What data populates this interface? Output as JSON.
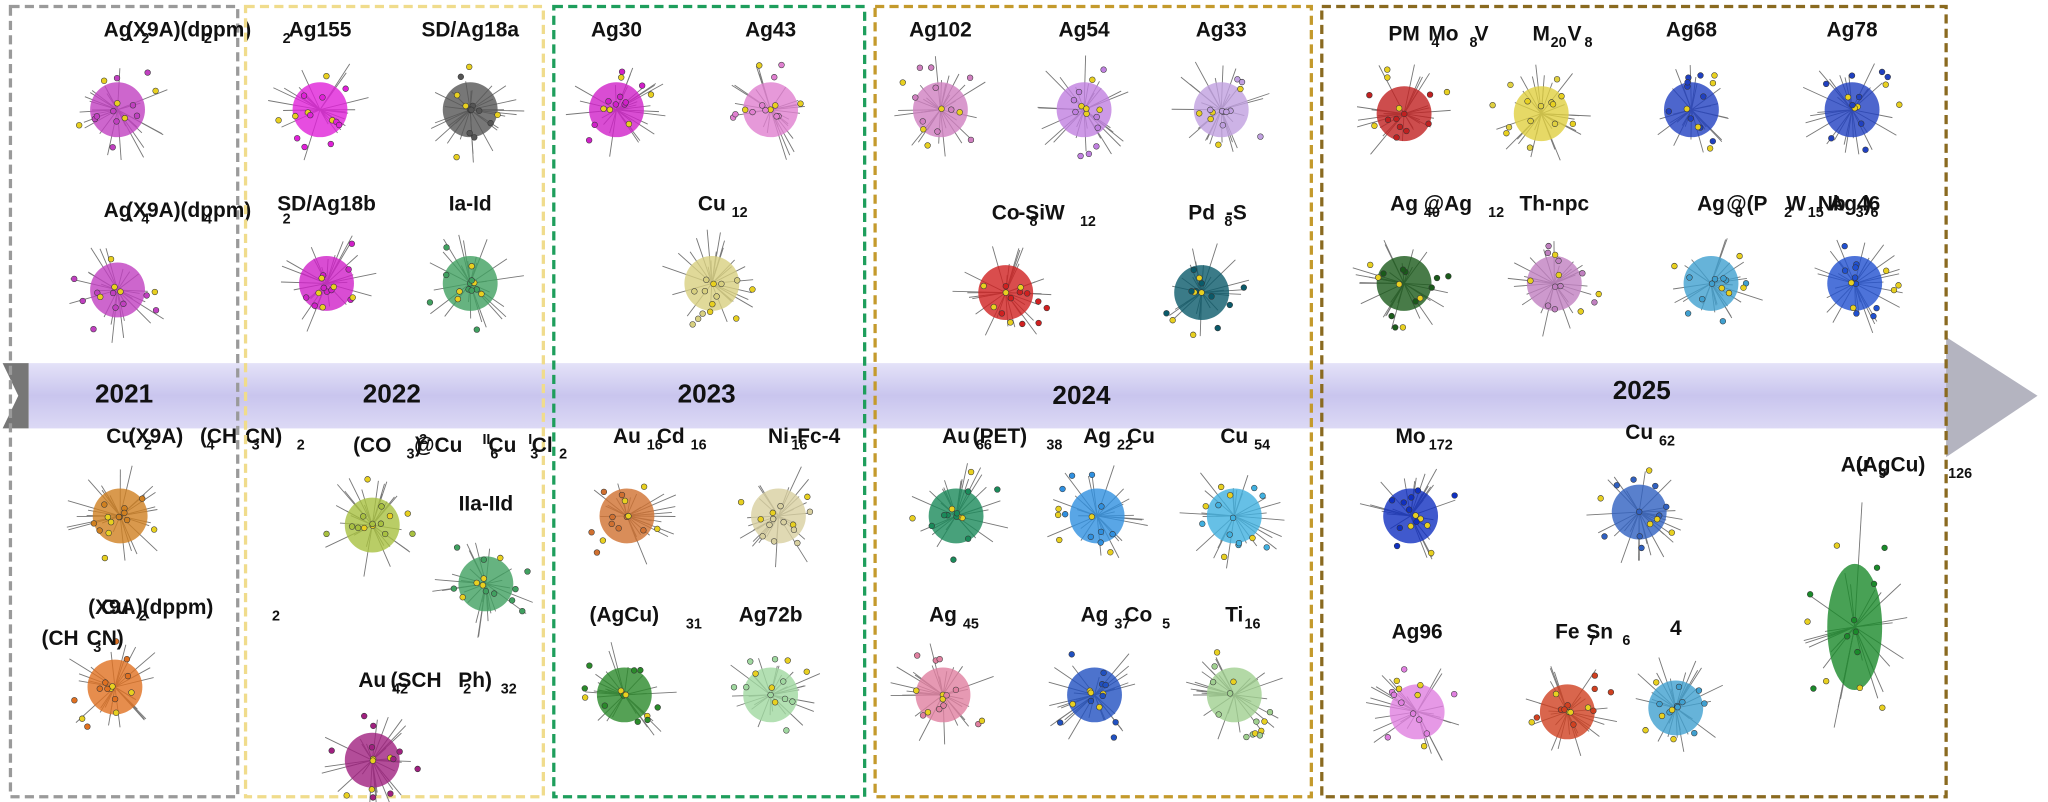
{
  "panels": [
    {
      "year": "2021",
      "items": [
        {
          "label": [
            {
              "text": "Ag"
            },
            {
              "text": "2",
              "sub": true
            },
            {
              "text": "(X9A)"
            },
            {
              "text": "2",
              "sub": true
            },
            {
              "text": "(dppm)"
            },
            {
              "text": "2",
              "sub": true
            }
          ]
        },
        {
          "label": [
            {
              "text": "Ag"
            },
            {
              "text": "4",
              "sub": true
            },
            {
              "text": "(X9A)"
            },
            {
              "text": "4",
              "sub": true
            },
            {
              "text": "(dppm)"
            },
            {
              "text": "2",
              "sub": true
            }
          ]
        },
        {
          "label": [
            {
              "text": "Cu"
            },
            {
              "text": "2",
              "sub": true
            },
            {
              "text": "(X9A)"
            },
            {
              "text": "4",
              "sub": true
            },
            {
              "text": "(CH"
            },
            {
              "text": "3",
              "sub": true
            },
            {
              "text": "CN)"
            },
            {
              "text": "2",
              "sub": true
            }
          ]
        },
        {
          "label": [
            {
              "text": "Cu"
            },
            {
              "text": "2",
              "sub": true
            },
            {
              "text": "(X9A)(dppm)"
            },
            {
              "text": "2",
              "sub": true
            }
          ]
        },
        {
          "label": [
            {
              "text": "(CH"
            },
            {
              "text": "3",
              "sub": true
            },
            {
              "text": "CN)"
            }
          ]
        }
      ]
    },
    {
      "year": "2022",
      "items": [
        {
          "label": [
            {
              "text": "Ag155"
            }
          ]
        },
        {
          "label": [
            {
              "text": "SD/Ag18a"
            }
          ]
        },
        {
          "label": [
            {
              "text": "SD/Ag18b"
            }
          ]
        },
        {
          "label": [
            {
              "text": "Ia-Id"
            }
          ]
        },
        {
          "label": [
            {
              "text": "(CO"
            },
            {
              "text": "3",
              "sub": true
            },
            {
              "text": ")"
            },
            {
              "text": "2-",
              "sup": true
            },
            {
              "text": "@Cu"
            },
            {
              "text": "II",
              "sup": true
            },
            {
              "text": "6",
              "sub": true
            },
            {
              "text": "Cu"
            },
            {
              "text": "I",
              "sup": true
            },
            {
              "text": "3",
              "sub": true
            },
            {
              "text": "Cl"
            },
            {
              "text": "2",
              "sub": true
            }
          ]
        },
        {
          "label": [
            {
              "text": "IIa-IId"
            }
          ]
        },
        {
          "label": [
            {
              "text": "Au"
            },
            {
              "text": "42",
              "sub": true
            },
            {
              "text": "(SCH"
            },
            {
              "text": "2",
              "sub": true
            },
            {
              "text": "Ph)"
            },
            {
              "text": "32",
              "sub": true
            }
          ]
        }
      ]
    },
    {
      "year": "2023",
      "items": [
        {
          "label": [
            {
              "text": "Ag30"
            }
          ]
        },
        {
          "label": [
            {
              "text": "Ag43"
            }
          ]
        },
        {
          "label": [
            {
              "text": "Cu"
            },
            {
              "text": "12",
              "sub": true
            }
          ]
        },
        {
          "label": [
            {
              "text": "Au"
            },
            {
              "text": "16",
              "sub": true
            },
            {
              "text": "Cd"
            },
            {
              "text": "16",
              "sub": true
            }
          ]
        },
        {
          "label": [
            {
              "text": "Ni"
            },
            {
              "text": "16",
              "sub": true
            },
            {
              "text": "-Fc-4"
            }
          ]
        },
        {
          "label": [
            {
              "text": "(AgCu)"
            },
            {
              "text": "31",
              "sub": true
            }
          ]
        },
        {
          "label": [
            {
              "text": "Ag72b"
            }
          ]
        }
      ]
    },
    {
      "year": "2024",
      "items": [
        {
          "label": [
            {
              "text": "Ag102"
            }
          ]
        },
        {
          "label": [
            {
              "text": "Ag54"
            }
          ]
        },
        {
          "label": [
            {
              "text": "Ag33"
            }
          ]
        },
        {
          "label": [
            {
              "text": "Co"
            },
            {
              "text": "8",
              "sub": true
            },
            {
              "text": "-SiW"
            },
            {
              "text": "12",
              "sub": true
            }
          ]
        },
        {
          "label": [
            {
              "text": "Pd"
            },
            {
              "text": "8",
              "sub": true
            },
            {
              "text": "-S"
            }
          ]
        },
        {
          "label": [
            {
              "text": "Au"
            },
            {
              "text": "66",
              "sub": true
            },
            {
              "text": "(PET)"
            },
            {
              "text": "38",
              "sub": true
            }
          ]
        },
        {
          "label": [
            {
              "text": "Ag"
            },
            {
              "text": "22",
              "sub": true
            },
            {
              "text": "Cu"
            }
          ]
        },
        {
          "label": [
            {
              "text": "Cu"
            },
            {
              "text": "54",
              "sub": true
            }
          ]
        },
        {
          "label": [
            {
              "text": "Ag"
            },
            {
              "text": "45",
              "sub": true
            }
          ]
        },
        {
          "label": [
            {
              "text": "Ag"
            },
            {
              "text": "37",
              "sub": true
            },
            {
              "text": "Co"
            },
            {
              "text": "5",
              "sub": true
            }
          ]
        },
        {
          "label": [
            {
              "text": "Ti"
            },
            {
              "text": "16",
              "sub": true
            }
          ]
        }
      ]
    },
    {
      "year": "2025",
      "items": [
        {
          "label": [
            {
              "text": "PM"
            },
            {
              "text": "4",
              "sub": true
            },
            {
              "text": "Mo"
            },
            {
              "text": "8",
              "sub": true
            },
            {
              "text": "V"
            }
          ]
        },
        {
          "label": [
            {
              "text": "M"
            },
            {
              "text": "20",
              "sub": true
            },
            {
              "text": "V"
            },
            {
              "text": "8",
              "sub": true
            }
          ]
        },
        {
          "label": [
            {
              "text": "Ag68"
            }
          ]
        },
        {
          "label": [
            {
              "text": "Ag78"
            }
          ]
        },
        {
          "label": [
            {
              "text": "Ag"
            },
            {
              "text": "40",
              "sub": true
            },
            {
              "text": "@Ag"
            },
            {
              "text": "12",
              "sub": true
            }
          ]
        },
        {
          "label": [
            {
              "text": "Th-npc"
            }
          ]
        },
        {
          "label": [
            {
              "text": "Ag"
            },
            {
              "text": "8",
              "sub": true
            },
            {
              "text": "@(P"
            },
            {
              "text": "2",
              "sub": true
            },
            {
              "text": "W"
            },
            {
              "text": "15",
              "sub": true
            },
            {
              "text": "Nb"
            },
            {
              "text": "3",
              "sub": true
            },
            {
              "text": ")"
            },
            {
              "text": "6",
              "sub": true
            }
          ]
        },
        {
          "label": [
            {
              "text": "Ag46"
            }
          ]
        },
        {
          "label": [
            {
              "text": "Mo"
            },
            {
              "text": "172",
              "sub": true
            }
          ]
        },
        {
          "label": [
            {
              "text": "Cu"
            },
            {
              "text": "62",
              "sub": true
            }
          ]
        },
        {
          "label": [
            {
              "text": "Au"
            },
            {
              "text": "9",
              "sub": true
            },
            {
              "text": "(AgCu)"
            },
            {
              "text": "126",
              "sub": true
            }
          ]
        },
        {
          "label": [
            {
              "text": "Ag96"
            }
          ]
        },
        {
          "label": [
            {
              "text": "Fe"
            },
            {
              "text": "7",
              "sub": true
            },
            {
              "text": "Sn"
            },
            {
              "text": "6",
              "sub": true
            }
          ]
        },
        {
          "label": [
            {
              "text": "4"
            }
          ]
        }
      ]
    }
  ]
}
